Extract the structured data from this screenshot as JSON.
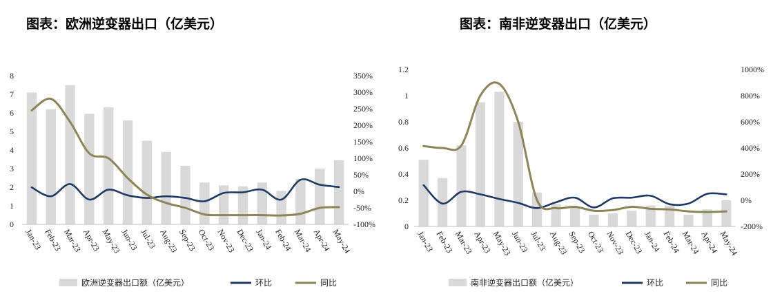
{
  "chart_data": [
    {
      "type": "bar-line-combo",
      "title": "图表：欧洲逆变器出口（亿美元）",
      "categories": [
        "Jan-23",
        "Feb-23",
        "Mar-23",
        "Apr-23",
        "May-23",
        "Jun-23",
        "Jul-23",
        "Aug-23",
        "Sep-23",
        "Oct-23",
        "Nov-23",
        "Dec-23",
        "Jan-24",
        "Feb-24",
        "Mar-24",
        "Apr-24",
        "May-24"
      ],
      "y_left": {
        "min": 0,
        "max": 8,
        "step": 1,
        "ticks": [
          "0",
          "1",
          "2",
          "3",
          "4",
          "5",
          "6",
          "7",
          "8"
        ]
      },
      "y_right": {
        "min": -100,
        "max": 350,
        "step": 50,
        "ticks": [
          "-100%",
          "-50%",
          "0%",
          "50%",
          "100%",
          "150%",
          "200%",
          "250%",
          "300%",
          "350%"
        ]
      },
      "series": [
        {
          "name": "欧洲逆变器出口额（亿美元）",
          "type": "bar",
          "axis": "left",
          "color": "#d9d9d9",
          "values": [
            7.1,
            6.2,
            7.5,
            5.95,
            6.3,
            5.6,
            4.5,
            3.9,
            3.15,
            2.25,
            2.1,
            2.05,
            2.25,
            1.8,
            2.45,
            3.0,
            3.45
          ]
        },
        {
          "name": "环比",
          "type": "line",
          "axis": "right",
          "color": "#1f3864",
          "values": [
            12,
            -15,
            22,
            -25,
            5,
            -12,
            -20,
            -15,
            -20,
            -30,
            -5,
            -3,
            5,
            -25,
            35,
            20,
            13
          ]
        },
        {
          "name": "同比",
          "type": "line",
          "axis": "right",
          "color": "#8c8456",
          "values": [
            245,
            280,
            210,
            115,
            100,
            40,
            -10,
            -35,
            -50,
            -70,
            -72,
            -72,
            -72,
            -73,
            -68,
            -50,
            -48
          ]
        }
      ]
    },
    {
      "type": "bar-line-combo",
      "title": "图表：南非逆变器出口（亿美元）",
      "categories": [
        "Jan-23",
        "Feb-23",
        "Mar-23",
        "Apr-23",
        "May-23",
        "Jun-23",
        "Jul-23",
        "Aug-23",
        "Sep-23",
        "Oct-23",
        "Nov-23",
        "Dec-23",
        "Jan-24",
        "Feb-24",
        "Mar-24",
        "Apr-24",
        "May-24"
      ],
      "y_left": {
        "min": 0,
        "max": 1.2,
        "step": 0.2,
        "ticks": [
          "0",
          "0.2",
          "0.4",
          "0.6",
          "0.8",
          "1",
          "1.2"
        ]
      },
      "y_right": {
        "min": -200,
        "max": 1000,
        "step": 200,
        "ticks": [
          "-200%",
          "0%",
          "200%",
          "400%",
          "600%",
          "800%",
          "1000%"
        ]
      },
      "series": [
        {
          "name": "南非逆变器出口额（亿美元）",
          "type": "bar",
          "axis": "left",
          "color": "#d9d9d9",
          "values": [
            0.51,
            0.37,
            0.62,
            0.95,
            1.03,
            0.8,
            0.26,
            0.17,
            0.15,
            0.09,
            0.1,
            0.12,
            0.16,
            0.16,
            0.09,
            0.13,
            0.2
          ]
        },
        {
          "name": "环比",
          "type": "line",
          "axis": "right",
          "color": "#1f3864",
          "values": [
            115,
            -25,
            65,
            45,
            10,
            -20,
            -60,
            -15,
            20,
            -55,
            15,
            20,
            35,
            -30,
            -25,
            50,
            45
          ]
        },
        {
          "name": "同比",
          "type": "line",
          "axis": "right",
          "color": "#8c8456",
          "values": [
            415,
            400,
            420,
            800,
            890,
            600,
            0,
            -60,
            -50,
            -80,
            -75,
            -50,
            -65,
            -70,
            -85,
            -90,
            -85
          ]
        }
      ]
    }
  ]
}
